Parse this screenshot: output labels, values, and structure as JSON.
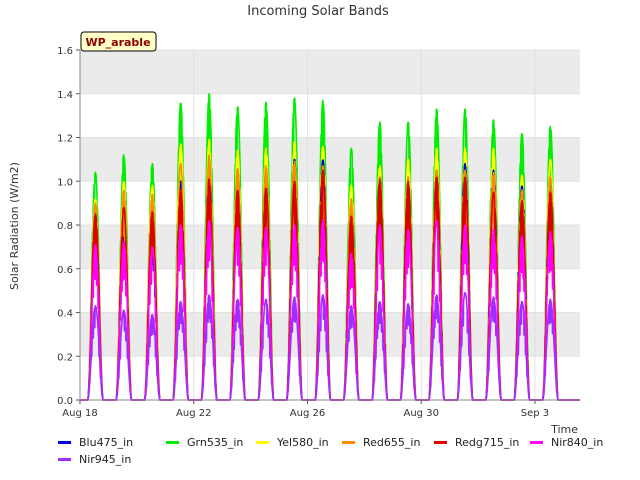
{
  "chart_data": {
    "type": "line",
    "title": "Incoming Solar Bands",
    "xlabel": "Time",
    "ylabel": "Solar Radiation (W/m2)",
    "ylim": [
      0,
      1.6
    ],
    "yticks": [
      "0.0",
      "0.2",
      "0.4",
      "0.6",
      "0.8",
      "1.0",
      "1.2",
      "1.4",
      "1.6"
    ],
    "xlim": [
      "2023-08-18",
      "2023-09-04 14:00"
    ],
    "xticks": [
      {
        "date": "2023-08-18",
        "label": "Aug 18"
      },
      {
        "date": "2023-08-22",
        "label": "Aug 22"
      },
      {
        "date": "2023-08-26",
        "label": "Aug 26"
      },
      {
        "date": "2023-08-30",
        "label": "Aug 30"
      },
      {
        "date": "2023-09-03",
        "label": "Sep 3"
      }
    ],
    "site_label": "WP_arable",
    "background_bands": true,
    "day_dates": [
      "2023-08-18",
      "2023-08-19",
      "2023-08-20",
      "2023-08-21",
      "2023-08-22",
      "2023-08-23",
      "2023-08-24",
      "2023-08-25",
      "2023-08-26",
      "2023-08-27",
      "2023-08-28",
      "2023-08-29",
      "2023-08-30",
      "2023-08-31",
      "2023-09-01",
      "2023-09-02",
      "2023-09-03",
      "2023-09-04"
    ],
    "series": [
      {
        "name": "Blu475_in",
        "color": "#0000ee",
        "daily_peaks": [
          0.78,
          0.8,
          0.8,
          1.0,
          1.1,
          1.05,
          1.05,
          1.1,
          1.1,
          0.88,
          1.0,
          1.0,
          1.05,
          1.08,
          1.05,
          0.98,
          1.0,
          0
        ]
      },
      {
        "name": "Grn535_in",
        "color": "#00ee00",
        "daily_peaks": [
          1.04,
          1.12,
          1.08,
          1.36,
          1.4,
          1.34,
          1.36,
          1.38,
          1.37,
          1.15,
          1.27,
          1.27,
          1.33,
          1.33,
          1.28,
          1.22,
          1.25,
          0
        ]
      },
      {
        "name": "Yel580_in",
        "color": "#ffff00",
        "daily_peaks": [
          0.92,
          1.0,
          0.98,
          1.17,
          1.19,
          1.14,
          1.15,
          1.18,
          1.16,
          0.98,
          1.07,
          1.1,
          1.15,
          1.15,
          1.15,
          1.03,
          1.1,
          0
        ]
      },
      {
        "name": "Red655_in",
        "color": "#ff8c00",
        "daily_peaks": [
          0.9,
          0.96,
          0.94,
          1.08,
          1.12,
          1.06,
          1.07,
          1.09,
          1.07,
          0.92,
          1.02,
          1.02,
          1.05,
          1.05,
          1.04,
          0.96,
          1.02,
          0
        ]
      },
      {
        "name": "Redg715_in",
        "color": "#dd0000",
        "daily_peaks": [
          0.85,
          0.88,
          0.86,
          0.96,
          1.01,
          0.96,
          0.97,
          1.0,
          1.05,
          0.84,
          1.01,
          1.0,
          1.02,
          1.02,
          0.95,
          0.91,
          0.95,
          0
        ]
      },
      {
        "name": "Nir840_in",
        "color": "#ff00ff",
        "daily_peaks": [
          0.71,
          0.72,
          0.7,
          0.8,
          0.82,
          0.79,
          0.79,
          0.8,
          0.82,
          0.67,
          0.8,
          0.78,
          0.82,
          0.8,
          0.78,
          0.75,
          0.77,
          0
        ]
      },
      {
        "name": "Nir945_in",
        "color": "#9b30ff",
        "daily_peaks": [
          0.43,
          0.41,
          0.39,
          0.45,
          0.48,
          0.46,
          0.46,
          0.47,
          0.48,
          0.43,
          0.45,
          0.44,
          0.48,
          0.49,
          0.47,
          0.45,
          0.46,
          0
        ]
      }
    ],
    "legend_position": "bottom"
  }
}
